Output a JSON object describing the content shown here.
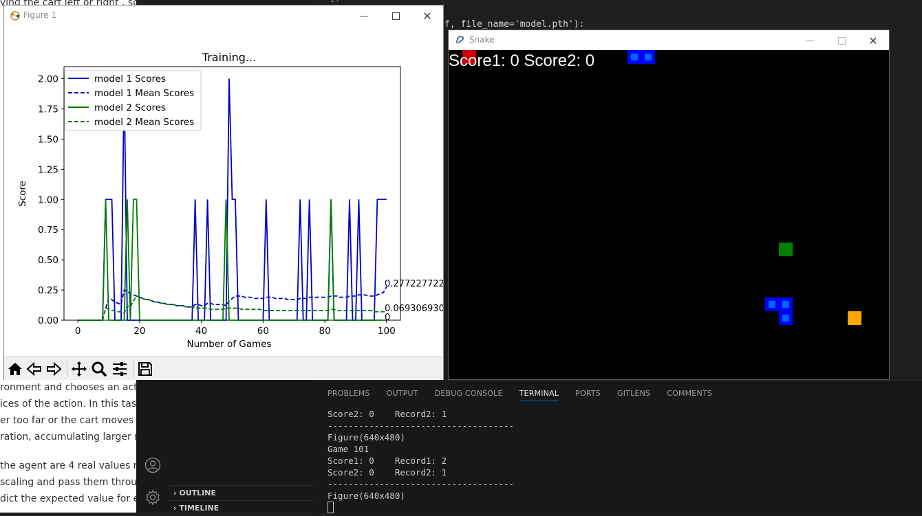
{
  "doc": {
    "top_line": "ving the cart left or right , so th",
    "lines": [
      "ronment and chooses an actio",
      "ices of the action. In this task, r",
      "er too far or the cart moves m",
      "ration, accumulating larger retu",
      "the agent are 4 real values rep",
      "scaling and pass them through",
      "dict the expected value for eac"
    ]
  },
  "editor": {
    "line_number": "27",
    "code_line": "f, file_name='model.pth'):"
  },
  "sidebar": {
    "sections": [
      "OUTLINE",
      "TIMELINE"
    ]
  },
  "panel": {
    "tabs": [
      "PROBLEMS",
      "OUTPUT",
      "DEBUG CONSOLE",
      "TERMINAL",
      "PORTS",
      "GITLENS",
      "COMMENTS"
    ],
    "active_tab": "TERMINAL",
    "terminal_lines": [
      "Score2: 0    Record2: 1",
      "------------------------------------",
      "Figure(640x480)",
      "Game 101",
      "Score1: 0    Record1: 2",
      "Score2: 0    Record2: 1",
      "------------------------------------",
      "Figure(640x480)"
    ]
  },
  "figure_window": {
    "title": "Figure 1",
    "toolbar_icons": [
      "home-icon",
      "back-icon",
      "forward-icon",
      "pan-icon",
      "zoom-icon",
      "configure-icon",
      "save-icon"
    ]
  },
  "snake_window": {
    "title": "Snake",
    "score_text": "Score1: 0 Score2: 0",
    "colors": {
      "snake": "#0000ff",
      "snake_inner": "#0064ff",
      "food1": "#cc0000",
      "food2": "#008000",
      "food3": "#ffa500"
    }
  },
  "chart_data": {
    "type": "line",
    "title": "Training...",
    "xlabel": "Number of Games",
    "ylabel": "Score",
    "xlim": [
      -4.5,
      104.5
    ],
    "ylim": [
      0,
      2.1
    ],
    "xticks": [
      "0",
      "20",
      "40",
      "60",
      "80",
      "100"
    ],
    "yticks": [
      "0.00",
      "0.25",
      "0.50",
      "0.75",
      "1.00",
      "1.25",
      "1.50",
      "1.75",
      "2.00"
    ],
    "legend": [
      "model 1 Scores",
      "model 1 Mean Scores",
      "model 2 Scores",
      "model 2 Mean Scores"
    ],
    "legend_position": "upper-left",
    "end_labels": [
      "0.27722772277",
      "0.06930693069",
      "0"
    ],
    "series": [
      {
        "name": "model 1 Scores",
        "color": "#0000cc",
        "style": "solid",
        "values": [
          0,
          0,
          0,
          0,
          0,
          0,
          0,
          0,
          0,
          1,
          1,
          1,
          0,
          0,
          0,
          2,
          0,
          0,
          0,
          0,
          0,
          0,
          0,
          0,
          0,
          0,
          0,
          0,
          0,
          0,
          0,
          0,
          0,
          0,
          0,
          0,
          0,
          0,
          1,
          0,
          0,
          0,
          1,
          0,
          0,
          0,
          0,
          0,
          0,
          2,
          1,
          1,
          0,
          0,
          0,
          0,
          0,
          0,
          0,
          0,
          0,
          1,
          0,
          0,
          0,
          0,
          0,
          0,
          0,
          0,
          0,
          0,
          1,
          0,
          0,
          1,
          0,
          0,
          0,
          0,
          0,
          0,
          1,
          0,
          0,
          0,
          0,
          0,
          1,
          0,
          0,
          1,
          0,
          0,
          0,
          0,
          0,
          1,
          1,
          1,
          1
        ]
      },
      {
        "name": "model 1 Mean Scores",
        "color": "#0000cc",
        "style": "dashed",
        "values": [
          0,
          0,
          0,
          0,
          0,
          0,
          0,
          0,
          0,
          0.1,
          0.18,
          0.17,
          0.15,
          0.14,
          0.13,
          0.25,
          0.24,
          0.22,
          0.21,
          0.2,
          0.19,
          0.18,
          0.17,
          0.17,
          0.16,
          0.15,
          0.15,
          0.14,
          0.14,
          0.13,
          0.13,
          0.13,
          0.12,
          0.12,
          0.12,
          0.11,
          0.11,
          0.11,
          0.13,
          0.13,
          0.12,
          0.12,
          0.14,
          0.14,
          0.13,
          0.13,
          0.13,
          0.13,
          0.12,
          0.16,
          0.18,
          0.2,
          0.2,
          0.2,
          0.19,
          0.19,
          0.19,
          0.18,
          0.18,
          0.18,
          0.18,
          0.19,
          0.19,
          0.19,
          0.18,
          0.18,
          0.18,
          0.18,
          0.17,
          0.17,
          0.17,
          0.17,
          0.18,
          0.18,
          0.18,
          0.19,
          0.19,
          0.19,
          0.19,
          0.19,
          0.19,
          0.19,
          0.2,
          0.2,
          0.2,
          0.19,
          0.19,
          0.19,
          0.2,
          0.2,
          0.2,
          0.21,
          0.21,
          0.21,
          0.2,
          0.2,
          0.2,
          0.21,
          0.22,
          0.23,
          0.277
        ]
      },
      {
        "name": "model 2 Scores",
        "color": "#007a00",
        "style": "solid",
        "values": [
          0,
          0,
          0,
          0,
          0,
          0,
          0,
          0,
          0,
          1,
          0,
          0,
          0,
          0,
          0,
          0,
          1,
          0,
          1,
          1,
          0,
          0,
          0,
          0,
          0,
          0,
          0,
          0,
          0,
          0,
          0,
          0,
          0,
          0,
          0,
          0,
          0,
          0,
          0,
          0,
          0,
          0,
          0,
          0,
          0,
          0,
          0,
          0,
          1,
          0,
          0,
          0,
          0,
          0,
          0,
          0,
          0,
          0,
          0,
          0,
          0,
          0,
          0,
          0,
          0,
          0,
          0,
          0,
          0,
          0,
          0,
          0,
          0,
          0,
          0,
          0,
          0,
          0,
          0,
          0,
          0,
          0,
          1,
          0,
          0,
          0,
          0,
          0,
          0,
          0,
          0,
          0,
          0,
          0,
          0,
          0,
          0,
          0,
          0,
          0,
          0
        ]
      },
      {
        "name": "model 2 Mean Scores",
        "color": "#007a00",
        "style": "dashed",
        "values": [
          0,
          0,
          0,
          0,
          0,
          0,
          0,
          0,
          0,
          0.1,
          0.09,
          0.08,
          0.08,
          0.07,
          0.07,
          0.06,
          0.12,
          0.11,
          0.16,
          0.2,
          0.19,
          0.18,
          0.17,
          0.17,
          0.16,
          0.15,
          0.15,
          0.14,
          0.14,
          0.13,
          0.13,
          0.13,
          0.12,
          0.12,
          0.12,
          0.11,
          0.11,
          0.11,
          0.1,
          0.1,
          0.1,
          0.1,
          0.1,
          0.09,
          0.09,
          0.09,
          0.09,
          0.09,
          0.1,
          0.1,
          0.1,
          0.1,
          0.1,
          0.09,
          0.09,
          0.09,
          0.09,
          0.09,
          0.09,
          0.09,
          0.08,
          0.08,
          0.08,
          0.08,
          0.08,
          0.08,
          0.08,
          0.08,
          0.08,
          0.08,
          0.08,
          0.08,
          0.08,
          0.08,
          0.08,
          0.08,
          0.08,
          0.08,
          0.08,
          0.08,
          0.08,
          0.08,
          0.09,
          0.09,
          0.08,
          0.08,
          0.08,
          0.08,
          0.08,
          0.08,
          0.08,
          0.08,
          0.08,
          0.08,
          0.08,
          0.08,
          0.07,
          0.07,
          0.07,
          0.07,
          0.069
        ]
      }
    ]
  }
}
